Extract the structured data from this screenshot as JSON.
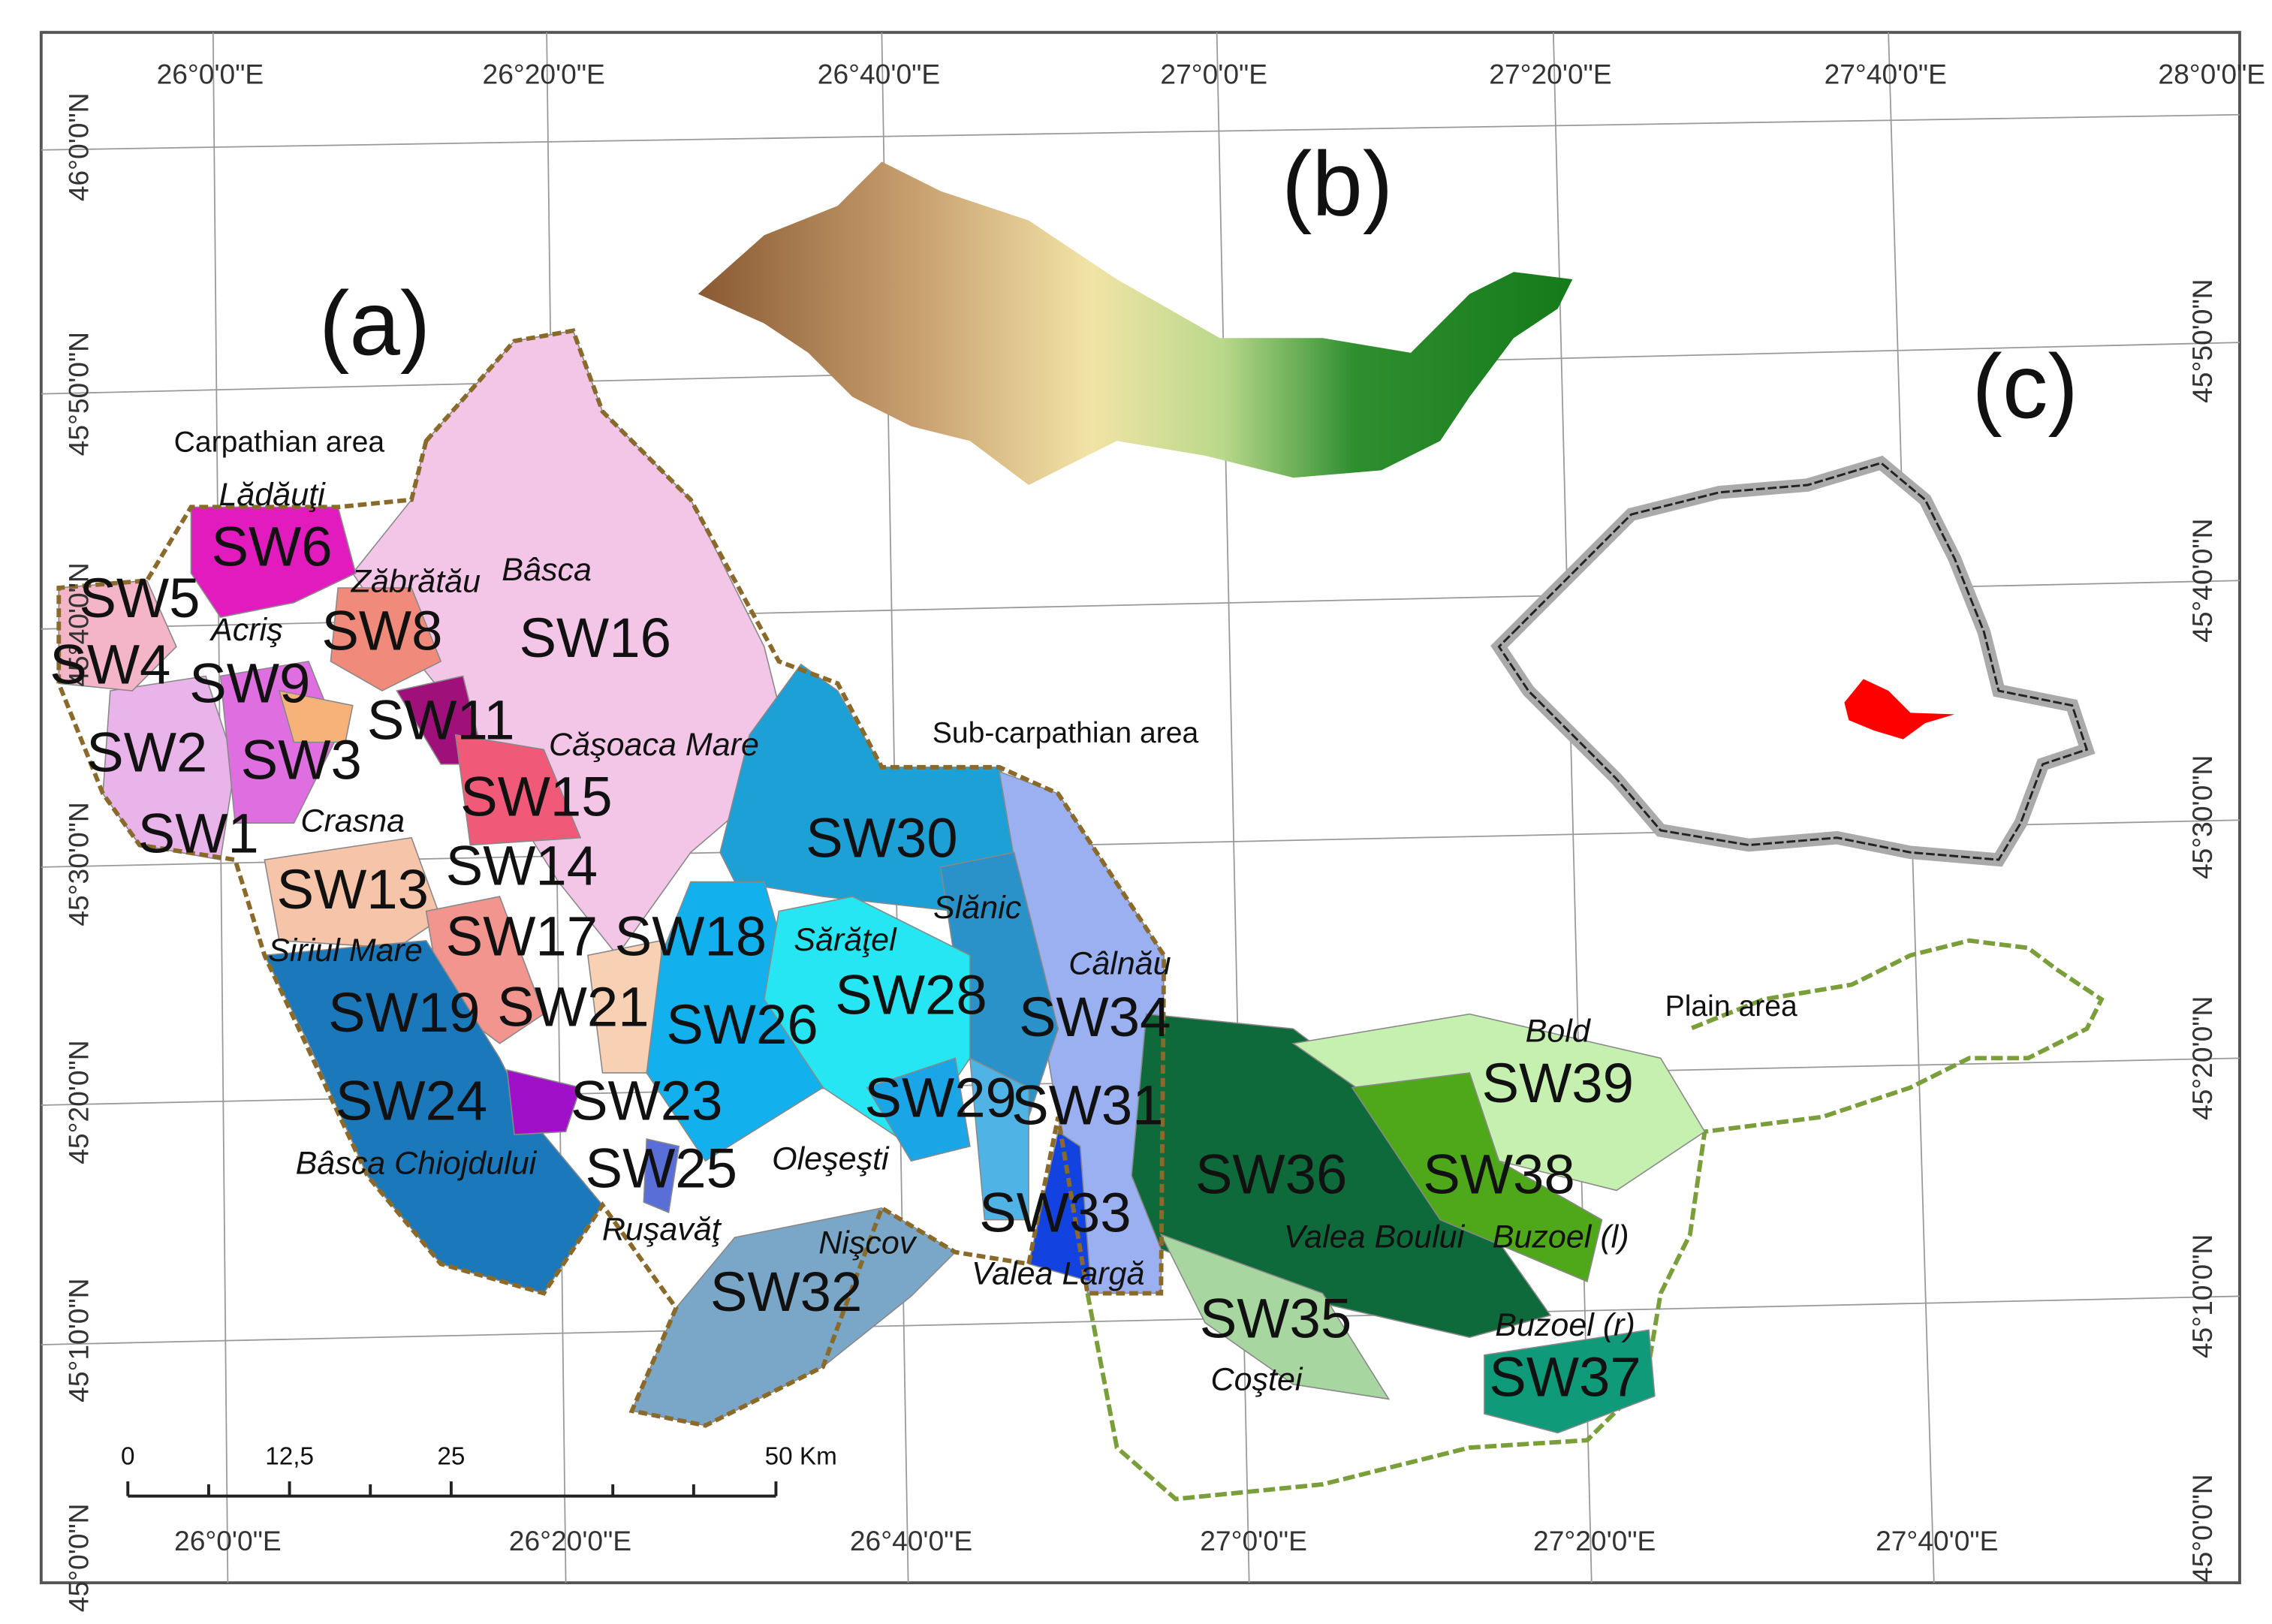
{
  "grid": {
    "top_labels": [
      "26°0'0\"E",
      "26°20'0\"E",
      "26°40'0\"E",
      "27°0'0\"E",
      "27°20'0\"E",
      "27°40'0\"E",
      "28°0'0\"E"
    ],
    "bottom_labels": [
      "26°0'0\"E",
      "26°20'0\"E",
      "26°40'0\"E",
      "27°0'0\"E",
      "27°20'0\"E",
      "27°40'0\"E"
    ],
    "left_labels": [
      "46°0'0\"N",
      "45°50'0\"N",
      "45°40'0\"N",
      "45°30'0\"N",
      "45°20'0\"N",
      "45°10'0\"N",
      "45°0'0\"N"
    ],
    "right_labels": [
      "45°50'0\"N",
      "45°40'0\"N",
      "45°30'0\"N",
      "45°20'0\"N",
      "45°10'0\"N",
      "45°0'0\"N"
    ]
  },
  "panels": [
    "(a)",
    "(b)",
    "(c)"
  ],
  "areas": [
    "Carpathian area",
    "Sub-carpathian area",
    "Plain area"
  ],
  "subwatersheds": [
    "SW1",
    "SW2",
    "SW3",
    "SW4",
    "SW5",
    "SW6",
    "SW8",
    "SW9",
    "SW11",
    "SW13",
    "SW14",
    "SW15",
    "SW16",
    "SW17",
    "SW18",
    "SW19",
    "SW21",
    "SW23",
    "SW24",
    "SW25",
    "SW26",
    "SW28",
    "SW29",
    "SW30",
    "SW31",
    "SW32",
    "SW33",
    "SW34",
    "SW35",
    "SW36",
    "SW37",
    "SW38",
    "SW39"
  ],
  "place_names": [
    "Lădăuţi",
    "Zăbrătău",
    "Bâsca",
    "Acriş",
    "Căşoaca Mare",
    "Crasna",
    "Siriul Mare",
    "Sărăţel",
    "Slănic",
    "Câlnău",
    "Bold",
    "Bâsca Chiojdului",
    "Oleşeşti",
    "Ruşavăţ",
    "Nişcov",
    "Valea Largă",
    "Valea Boului",
    "Buzoel (l)",
    "Buzoel (r)",
    "Coştei"
  ],
  "scale_bar": {
    "labels": [
      "0",
      "12,5",
      "25",
      "50 Km"
    ]
  }
}
